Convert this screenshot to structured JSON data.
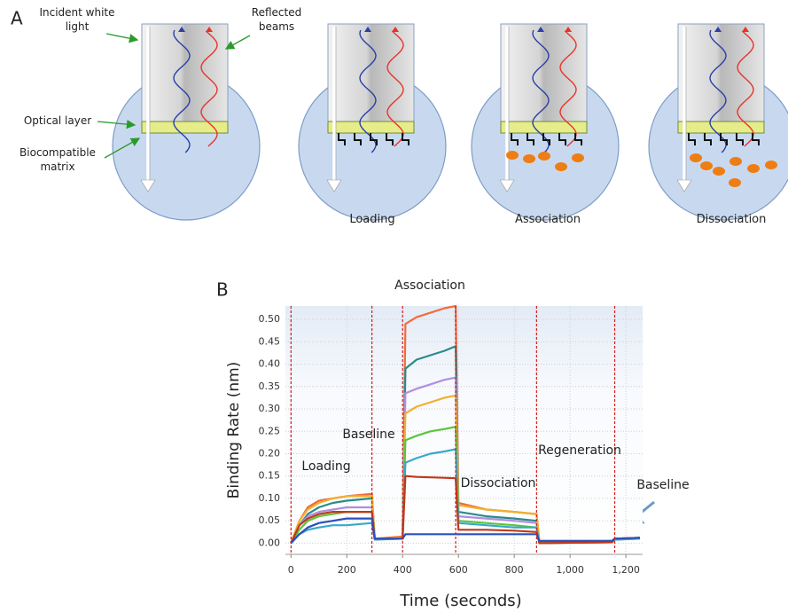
{
  "panel_a": {
    "label": "A",
    "incident": "Incident white light",
    "reflected": "Reflected beams",
    "optical": "Optical layer",
    "matrix": "Biocompatible matrix",
    "steps": [
      "Loading",
      "Association",
      "Dissociation"
    ]
  },
  "chart_data": {
    "type": "line",
    "label": "B",
    "xlabel": "Time (seconds)",
    "ylabel": "Binding Rate (nm)",
    "xlim": [
      -20,
      1260
    ],
    "ylim": [
      -0.025,
      0.53
    ],
    "xticks": [
      0,
      200,
      400,
      600,
      800,
      {
        "value": 1000,
        "label": "1,000"
      },
      {
        "value": 1200,
        "label": "1,200"
      }
    ],
    "yticks": [
      {
        "value": 0,
        "label": "0.00"
      },
      {
        "value": 0.05,
        "label": "0.05"
      },
      {
        "value": 0.1,
        "label": "0.10"
      },
      {
        "value": 0.15,
        "label": "0.15"
      },
      {
        "value": 0.2,
        "label": "0.20"
      },
      {
        "value": 0.25,
        "label": "0.25"
      },
      {
        "value": 0.3,
        "label": "0.30"
      },
      {
        "value": 0.35,
        "label": "0.35"
      },
      {
        "value": 0.4,
        "label": "0.40"
      },
      {
        "value": 0.45,
        "label": "0.45"
      },
      {
        "value": 0.5,
        "label": "0.50"
      }
    ],
    "grid": true,
    "phase_lines": [
      0,
      290,
      400,
      590,
      880,
      1160
    ],
    "annotations": [
      "Association",
      "Baseline",
      "Loading",
      "Dissociation",
      "Regeneration",
      "Baseline"
    ],
    "x": [
      0,
      30,
      60,
      100,
      150,
      200,
      290,
      300,
      400,
      410,
      450,
      500,
      550,
      590,
      600,
      700,
      800,
      880,
      890,
      1150,
      1160,
      1250
    ],
    "series": [
      {
        "color": "#f26b3a",
        "values": [
          0,
          0.05,
          0.08,
          0.095,
          0.1,
          0.105,
          0.11,
          0.01,
          0.015,
          0.49,
          0.505,
          0.515,
          0.525,
          0.53,
          0.09,
          0.075,
          0.07,
          0.065,
          0.005,
          0.005,
          0.01,
          0.012
        ]
      },
      {
        "color": "#2a8a8a",
        "values": [
          0,
          0.04,
          0.065,
          0.08,
          0.09,
          0.095,
          0.1,
          0.01,
          0.012,
          0.39,
          0.41,
          0.42,
          0.43,
          0.44,
          0.07,
          0.06,
          0.055,
          0.05,
          0,
          0.005,
          0.01,
          0.012
        ]
      },
      {
        "color": "#b28ee0",
        "values": [
          0,
          0.04,
          0.06,
          0.07,
          0.075,
          0.08,
          0.08,
          0.01,
          0.01,
          0.335,
          0.345,
          0.355,
          0.365,
          0.37,
          0.06,
          0.055,
          0.05,
          0.045,
          0,
          0.003,
          0.008,
          0.01
        ]
      },
      {
        "color": "#f0b030",
        "values": [
          0,
          0.05,
          0.075,
          0.09,
          0.1,
          0.105,
          0.105,
          0.01,
          0.012,
          0.29,
          0.305,
          0.315,
          0.325,
          0.33,
          0.085,
          0.075,
          0.07,
          0.065,
          0.003,
          0.003,
          0.01,
          0.012
        ]
      },
      {
        "color": "#5cc43c",
        "values": [
          0,
          0.03,
          0.05,
          0.06,
          0.065,
          0.07,
          0.07,
          0.008,
          0.01,
          0.23,
          0.24,
          0.25,
          0.255,
          0.26,
          0.05,
          0.045,
          0.04,
          0.035,
          0,
          0.002,
          0.008,
          0.01
        ]
      },
      {
        "color": "#38a8c8",
        "values": [
          0,
          0.02,
          0.03,
          0.035,
          0.04,
          0.04,
          0.045,
          0.008,
          0.01,
          0.18,
          0.19,
          0.2,
          0.205,
          0.21,
          0.045,
          0.04,
          0.035,
          0.035,
          0,
          0.002,
          0.008,
          0.01
        ]
      },
      {
        "color": "#c0391b",
        "values": [
          0,
          0.04,
          0.055,
          0.065,
          0.07,
          0.07,
          0.07,
          0.01,
          0.01,
          0.15,
          0.148,
          0.147,
          0.146,
          0.145,
          0.03,
          0.03,
          0.028,
          0.025,
          0,
          0.002,
          0.01,
          0.012
        ]
      },
      {
        "color": "#2850c0",
        "values": [
          0,
          0.02,
          0.035,
          0.045,
          0.05,
          0.055,
          0.055,
          0.01,
          0.01,
          0.02,
          0.02,
          0.02,
          0.02,
          0.02,
          0.02,
          0.02,
          0.02,
          0.02,
          0.005,
          0.005,
          0.01,
          0.012
        ]
      }
    ]
  }
}
